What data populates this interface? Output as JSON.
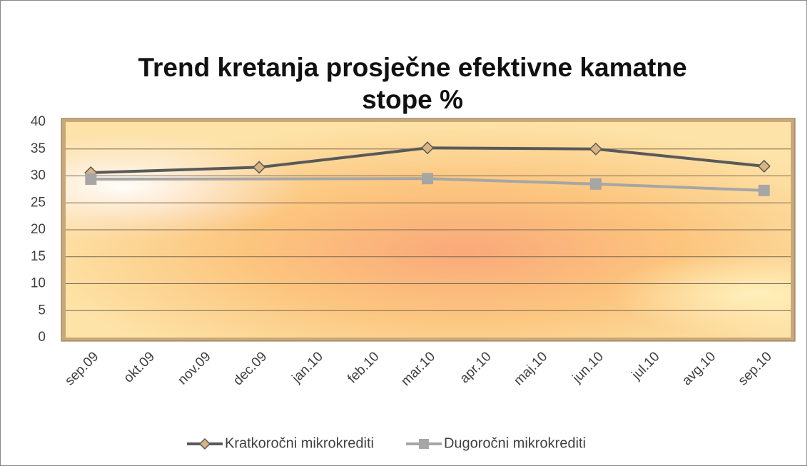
{
  "chart_data": {
    "type": "line",
    "title": "Trend kretanja prosječne efektivne kamatne stope %",
    "categories": [
      "sep.09",
      "okt.09",
      "nov.09",
      "dec.09",
      "jan.10",
      "feb.10",
      "mar.10",
      "apr.10",
      "maj.10",
      "jun.10",
      "jul.10",
      "avg.10",
      "sep.10"
    ],
    "series": [
      {
        "name": "Kratkoročni mikrokrediti",
        "color": "#595959",
        "marker": "diamond",
        "marker_color": "#d9b382",
        "values": [
          30.6,
          null,
          null,
          31.6,
          null,
          null,
          35.2,
          null,
          null,
          35.0,
          null,
          null,
          31.8
        ]
      },
      {
        "name": "Dugoročni mikrokrediti",
        "color": "#a6a6a6",
        "marker": "square",
        "marker_color": "#a6a6a6",
        "values": [
          29.4,
          null,
          null,
          null,
          null,
          null,
          29.5,
          null,
          null,
          28.5,
          null,
          null,
          27.3
        ]
      }
    ],
    "ylim": [
      0,
      40
    ],
    "yticks": [
      0,
      5,
      10,
      15,
      20,
      25,
      30,
      35,
      40
    ],
    "grid": true,
    "legend": "bottom"
  }
}
